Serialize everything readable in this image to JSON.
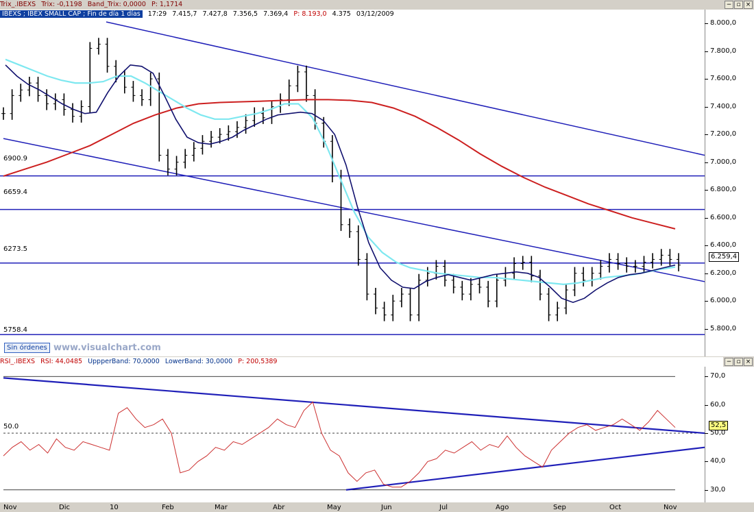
{
  "top_header": {
    "study": "Trix_.IBEXS",
    "trix": "Trix: -0,1198",
    "band": "Band_Trix: 0,0000",
    "p": "P: 1,1714",
    "price_title": "IBEXS ; IBEX SMALL CAP ; Fin de día 1 días",
    "time": "17:29",
    "open": "7.415,7",
    "high": "7.427,8",
    "low": "7.356,5",
    "close": "7.369,4",
    "p2": "P: 8.193,0",
    "volume": "4.375",
    "date": "03/12/2009"
  },
  "rsi_header": {
    "study": "RSI_.IBEXS",
    "rsi": "RSI: 44,0485",
    "upper": "UppperBand: 70,0000",
    "lower": "LowerBand: 30,0000",
    "p": "P: 200,5389"
  },
  "window_buttons": {
    "min": "−",
    "max": "▫",
    "close": "×"
  },
  "levels": [
    {
      "label": "6900.9",
      "value": 6900.9
    },
    {
      "label": "6659.4",
      "value": 6659.4
    },
    {
      "label": "6273.5",
      "value": 6273.5
    },
    {
      "label": "5758.4",
      "value": 5758.4
    }
  ],
  "last_price_label": "6.259,4",
  "last_rsi_label": "52,5",
  "rsi_midline_label": "50.0",
  "button_label": "Sin órdenes",
  "watermark": "www.visualchart.com",
  "colors": {
    "price": "#000000",
    "fast_ma": "#10106e",
    "slow_ma": "#7ee8f0",
    "long_ma": "#cc1f1f",
    "trend": "#1f1fb8",
    "rsi": "#cc2f2f"
  },
  "chart_data": [
    {
      "type": "line",
      "subtype": "bar-ohlc",
      "instrument": "IBEXS",
      "x_labels": [
        "Nov",
        "Dic",
        "10",
        "Feb",
        "Mar",
        "Abr",
        "May",
        "Jun",
        "Jul",
        "Ago",
        "Sep",
        "Oct",
        "Nov"
      ],
      "y_ticks": [
        "8.000,0",
        "7.800,0",
        "7.600,0",
        "7.400,0",
        "7.200,0",
        "7.000,0",
        "6.800,0",
        "6.600,0",
        "6.400,0",
        "6.200,0",
        "6.000,0",
        "5.800,0"
      ],
      "ylim": [
        5700,
        8000
      ],
      "series": [
        {
          "name": "Price",
          "values": [
            7350,
            7480,
            7520,
            7570,
            7480,
            7420,
            7450,
            7380,
            7330,
            7400,
            7820,
            7850,
            7690,
            7620,
            7540,
            7480,
            7450,
            7600,
            7050,
            6950,
            7000,
            7050,
            7100,
            7150,
            7180,
            7200,
            7220,
            7250,
            7300,
            7350,
            7320,
            7400,
            7450,
            7550,
            7650,
            7480,
            7280,
            7150,
            6900,
            6550,
            6500,
            6300,
            6050,
            5950,
            5900,
            6000,
            6050,
            5900,
            6150,
            6200,
            6250,
            6150,
            6100,
            6050,
            6120,
            6100,
            6000,
            6150,
            6200,
            6270,
            6280,
            6180,
            6050,
            5900,
            5950,
            6080,
            6200,
            6150,
            6200,
            6250,
            6300,
            6270,
            6250,
            6250,
            6280,
            6300,
            6330,
            6300,
            6259
          ]
        },
        {
          "name": "Fast MA",
          "values": [
            7700,
            7620,
            7560,
            7520,
            7470,
            7420,
            7380,
            7350,
            7360,
            7500,
            7620,
            7700,
            7690,
            7640,
            7480,
            7310,
            7180,
            7140,
            7130,
            7150,
            7180,
            7230,
            7270,
            7310,
            7340,
            7350,
            7360,
            7350,
            7300,
            7200,
            6980,
            6680,
            6420,
            6240,
            6150,
            6100,
            6090,
            6140,
            6170,
            6190,
            6170,
            6150,
            6170,
            6190,
            6200,
            6210,
            6200,
            6170,
            6100,
            6020,
            5990,
            6020,
            6080,
            6130,
            6170,
            6190,
            6200,
            6220,
            6240,
            6259
          ]
        },
        {
          "name": "Slow MA",
          "values": [
            7740,
            7700,
            7660,
            7620,
            7590,
            7570,
            7570,
            7580,
            7620,
            7620,
            7570,
            7510,
            7450,
            7390,
            7340,
            7310,
            7310,
            7330,
            7350,
            7380,
            7420,
            7420,
            7320,
            7120,
            6880,
            6640,
            6460,
            6350,
            6280,
            6240,
            6220,
            6200,
            6190,
            6180,
            6170,
            6170,
            6160,
            6150,
            6140,
            6130,
            6120,
            6130,
            6150,
            6170,
            6180,
            6190,
            6210,
            6230,
            6245
          ]
        },
        {
          "name": "Long MA",
          "values": [
            6900,
            6950,
            7000,
            7060,
            7120,
            7200,
            7280,
            7340,
            7390,
            7420,
            7430,
            7435,
            7440,
            7445,
            7450,
            7450,
            7445,
            7430,
            7390,
            7330,
            7250,
            7160,
            7060,
            6970,
            6890,
            6820,
            6760,
            6700,
            6650,
            6600,
            6560,
            6520
          ]
        }
      ],
      "trendlines": "upper channel, lower channel, horizontal levels",
      "grid": false
    },
    {
      "type": "line",
      "indicator": "RSI",
      "y_ticks": [
        "70,0",
        "60,0",
        "50,0",
        "40,0",
        "30,0"
      ],
      "ylim": [
        28,
        72
      ],
      "bands": [
        70,
        30
      ],
      "midline": 50,
      "series": [
        {
          "name": "RSI",
          "values": [
            42,
            45,
            47,
            44,
            46,
            43,
            48,
            45,
            44,
            47,
            46,
            45,
            44,
            57,
            59,
            55,
            52,
            53,
            55,
            50,
            36,
            37,
            40,
            42,
            45,
            44,
            47,
            46,
            48,
            50,
            52,
            55,
            53,
            52,
            58,
            61,
            50,
            44,
            42,
            36,
            33,
            36,
            37,
            32,
            31,
            31,
            33,
            36,
            40,
            41,
            44,
            43,
            45,
            47,
            44,
            46,
            45,
            49,
            45,
            42,
            40,
            38,
            44,
            47,
            50,
            52,
            53,
            51,
            52,
            53,
            55,
            53,
            51,
            54,
            58,
            55,
            52
          ]
        }
      ],
      "grid": false
    }
  ]
}
